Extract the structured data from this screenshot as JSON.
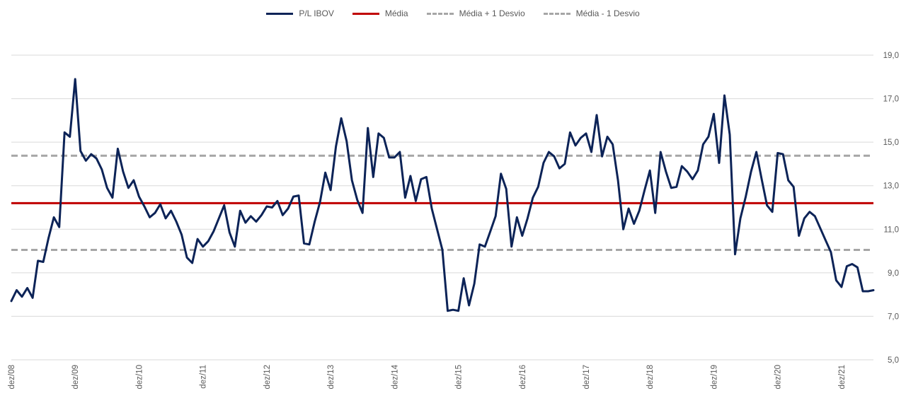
{
  "chart_data": {
    "type": "line",
    "title": "",
    "xlabel": "",
    "ylabel": "",
    "ylim": [
      5,
      19
    ],
    "y_ticks": [
      "5,0",
      "7,0",
      "9,0",
      "11,0",
      "13,0",
      "15,0",
      "17,0",
      "19,0"
    ],
    "y_tick_values": [
      5,
      7,
      9,
      11,
      13,
      15,
      17,
      19
    ],
    "x_tick_labels": [
      "dez/08",
      "dez/09",
      "dez/10",
      "dez/11",
      "dez/12",
      "dez/13",
      "dez/14",
      "dez/15",
      "dez/16",
      "dez/17",
      "dez/18",
      "dez/19",
      "dez/20",
      "dez/21"
    ],
    "x_tick_index": [
      0,
      12,
      24,
      36,
      48,
      60,
      72,
      84,
      96,
      108,
      120,
      132,
      144,
      156
    ],
    "legend_position": "top-center",
    "grid": true,
    "series": [
      {
        "name": "P/L IBOV",
        "color": "#0c2357",
        "style": "solid",
        "values": [
          7.7,
          8.2,
          7.9,
          8.3,
          7.85,
          9.55,
          9.5,
          10.6,
          11.55,
          11.1,
          15.45,
          15.25,
          17.9,
          14.6,
          14.15,
          14.45,
          14.25,
          13.75,
          12.9,
          12.45,
          14.7,
          13.65,
          12.9,
          13.25,
          12.5,
          12.05,
          11.55,
          11.75,
          12.15,
          11.5,
          11.85,
          11.35,
          10.75,
          9.7,
          9.45,
          10.55,
          10.2,
          10.45,
          10.9,
          11.5,
          12.1,
          10.85,
          10.2,
          11.85,
          11.3,
          11.6,
          11.35,
          11.65,
          12.05,
          12.0,
          12.3,
          11.65,
          11.95,
          12.5,
          12.55,
          10.35,
          10.3,
          11.35,
          12.25,
          13.6,
          12.8,
          14.8,
          16.1,
          15.05,
          13.25,
          12.35,
          11.75,
          15.65,
          13.4,
          15.4,
          15.2,
          14.3,
          14.3,
          14.55,
          12.45,
          13.45,
          12.3,
          13.3,
          13.4,
          11.95,
          11.0,
          10.05,
          7.25,
          7.3,
          7.25,
          8.75,
          7.5,
          8.5,
          10.3,
          10.2,
          10.9,
          11.6,
          13.55,
          12.85,
          10.2,
          11.55,
          10.7,
          11.5,
          12.45,
          12.95,
          14.05,
          14.55,
          14.35,
          13.8,
          14.0,
          15.45,
          14.85,
          15.2,
          15.4,
          14.55,
          16.25,
          14.35,
          15.25,
          14.9,
          13.25,
          11.0,
          11.95,
          11.25,
          11.85,
          12.8,
          13.7,
          11.75,
          14.55,
          13.65,
          12.9,
          12.95,
          13.9,
          13.65,
          13.3,
          13.7,
          14.9,
          15.25,
          16.3,
          14.05,
          17.15,
          15.35,
          9.85,
          11.5,
          12.5,
          13.65,
          14.55,
          13.3,
          12.1,
          11.8,
          14.5,
          14.45,
          13.25,
          12.95,
          10.7,
          11.5,
          11.8,
          11.6,
          11.05,
          10.5,
          9.95,
          8.65,
          8.35,
          9.3,
          9.4,
          9.25,
          8.15,
          8.15,
          8.2
        ]
      },
      {
        "name": "Média",
        "color": "#c00000",
        "style": "solid",
        "value": 12.2
      },
      {
        "name": "Média + 1 Desvio",
        "color": "#a6a6a6",
        "style": "dashed",
        "value": 14.38
      },
      {
        "name": "Média - 1 Desvio",
        "color": "#a6a6a6",
        "style": "dashed",
        "value": 10.05
      }
    ]
  }
}
